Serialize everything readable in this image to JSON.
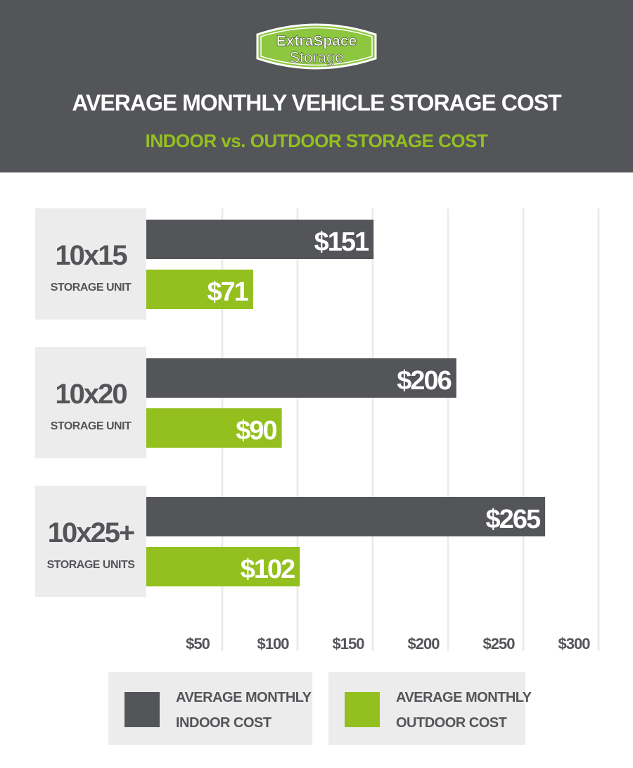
{
  "header": {
    "logo_line1": "ExtraSpace",
    "logo_line2": "Storage",
    "title": "AVERAGE MONTHLY VEHICLE STORAGE COST",
    "subtitle": "INDOOR vs. OUTDOOR STORAGE COST"
  },
  "colors": {
    "indoor": "#545559",
    "outdoor": "#93c01f",
    "header_bg": "#545559",
    "category_bg": "#ececec",
    "grid": "#ececec"
  },
  "chart_data": {
    "type": "bar",
    "orientation": "horizontal",
    "title": "AVERAGE MONTHLY VEHICLE STORAGE COST",
    "subtitle": "INDOOR vs. OUTDOOR STORAGE COST",
    "categories": [
      {
        "size": "10x15",
        "label": "STORAGE UNIT"
      },
      {
        "size": "10x20",
        "label": "STORAGE UNIT"
      },
      {
        "size": "10x25+",
        "label": "STORAGE UNITS"
      }
    ],
    "series": [
      {
        "name": "AVERAGE MONTHLY INDOOR COST",
        "values": [
          151,
          206,
          265
        ],
        "labels": [
          "$151",
          "$206",
          "$265"
        ]
      },
      {
        "name": "AVERAGE MONTHLY OUTDOOR COST",
        "values": [
          71,
          90,
          102
        ],
        "labels": [
          "$71",
          "$90",
          "$102"
        ]
      }
    ],
    "x_ticks": [
      50,
      100,
      150,
      200,
      250,
      300
    ],
    "x_tick_labels": [
      "$50",
      "$100",
      "$150",
      "$200",
      "$250",
      "$300"
    ],
    "xlim": [
      0,
      300
    ],
    "grid": true,
    "legend_placement": "bottom"
  },
  "legend": {
    "indoor_line1": "AVERAGE MONTHLY",
    "indoor_line2": "INDOOR COST",
    "outdoor_line1": "AVERAGE MONTHLY",
    "outdoor_line2": "OUTDOOR COST"
  }
}
